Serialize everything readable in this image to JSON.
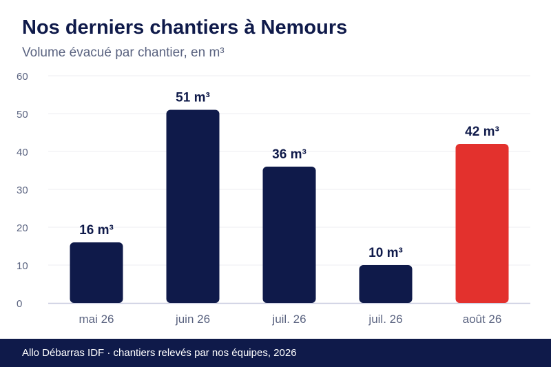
{
  "title": "Nos derniers chantiers à Nemours",
  "subtitle": "Volume évacué par chantier, en m³",
  "footer": "Allo Débarras IDF · chantiers relevés par nos équipes, 2026",
  "colors": {
    "bar": "#0f1a4a",
    "highlight": "#e3312d",
    "grid": "#ececf2",
    "axis_text": "#5a6380",
    "label_text": "#0f1a4a"
  },
  "chart_data": {
    "type": "bar",
    "categories": [
      "mai 26",
      "juin 26",
      "juil. 26",
      "juil. 26",
      "août 26"
    ],
    "values": [
      16,
      51,
      36,
      10,
      42
    ],
    "data_labels": [
      "16 m³",
      "51 m³",
      "36 m³",
      "10 m³",
      "42 m³"
    ],
    "highlight_index": 4,
    "ylim": [
      0,
      60
    ],
    "yticks": [
      0,
      10,
      20,
      30,
      40,
      50,
      60
    ],
    "grid": true,
    "xlabel": "",
    "ylabel": ""
  }
}
